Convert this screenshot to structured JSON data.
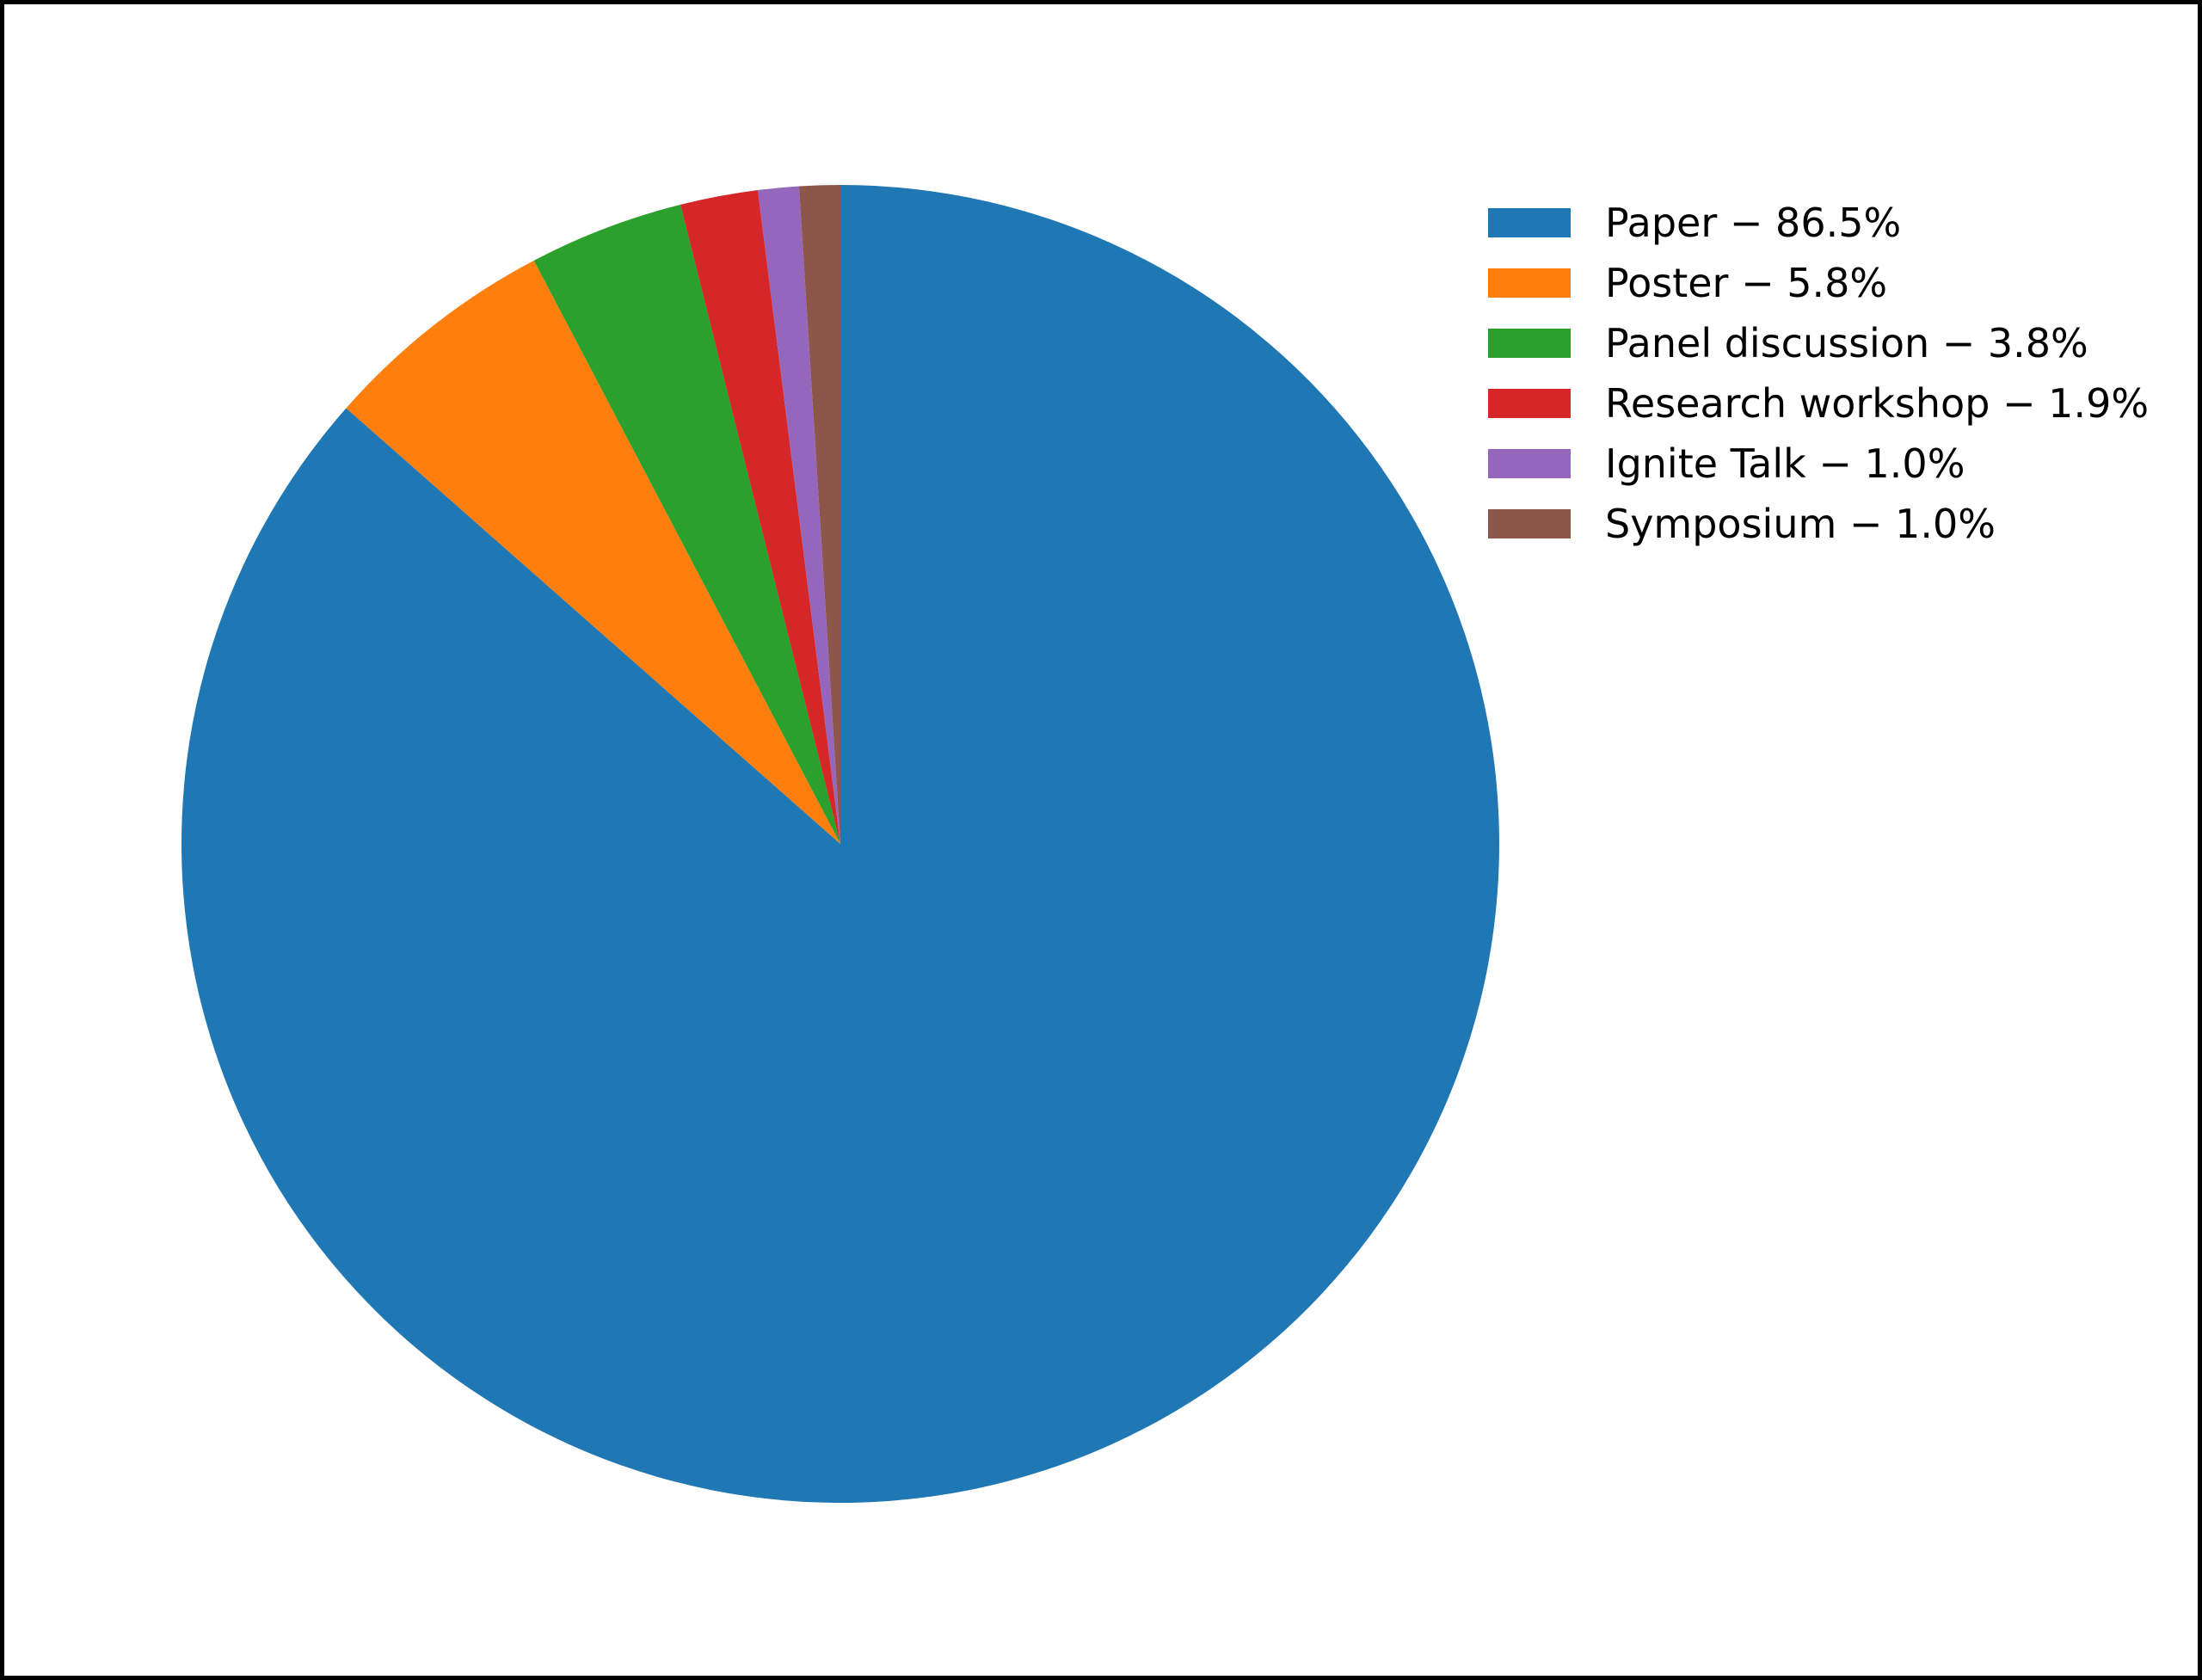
{
  "chart_data": {
    "type": "pie",
    "title": "",
    "start_angle_deg": 90,
    "counterclockwise": false,
    "total_pct": 100.0,
    "legend": {
      "position": "upper right",
      "frame": false
    },
    "slices": [
      {
        "label": "Paper",
        "value_pct": 86.5,
        "color": "#1f77b4",
        "legend_text": "Paper − 86.5%"
      },
      {
        "label": "Poster",
        "value_pct": 5.8,
        "color": "#ff7f0e",
        "legend_text": "Poster − 5.8%"
      },
      {
        "label": "Panel discussion",
        "value_pct": 3.8,
        "color": "#2ca02c",
        "legend_text": "Panel discussion − 3.8%"
      },
      {
        "label": "Research workshop",
        "value_pct": 1.9,
        "color": "#d62728",
        "legend_text": "Research workshop − 1.9%"
      },
      {
        "label": "Ignite Talk",
        "value_pct": 1.0,
        "color": "#9467bd",
        "legend_text": "Ignite Talk − 1.0%"
      },
      {
        "label": "Symposium",
        "value_pct": 1.0,
        "color": "#8c564b",
        "legend_text": "Symposium − 1.0%"
      }
    ]
  },
  "canvas": {
    "background_color": "#ffffff",
    "frame_border_color": "#000000"
  }
}
